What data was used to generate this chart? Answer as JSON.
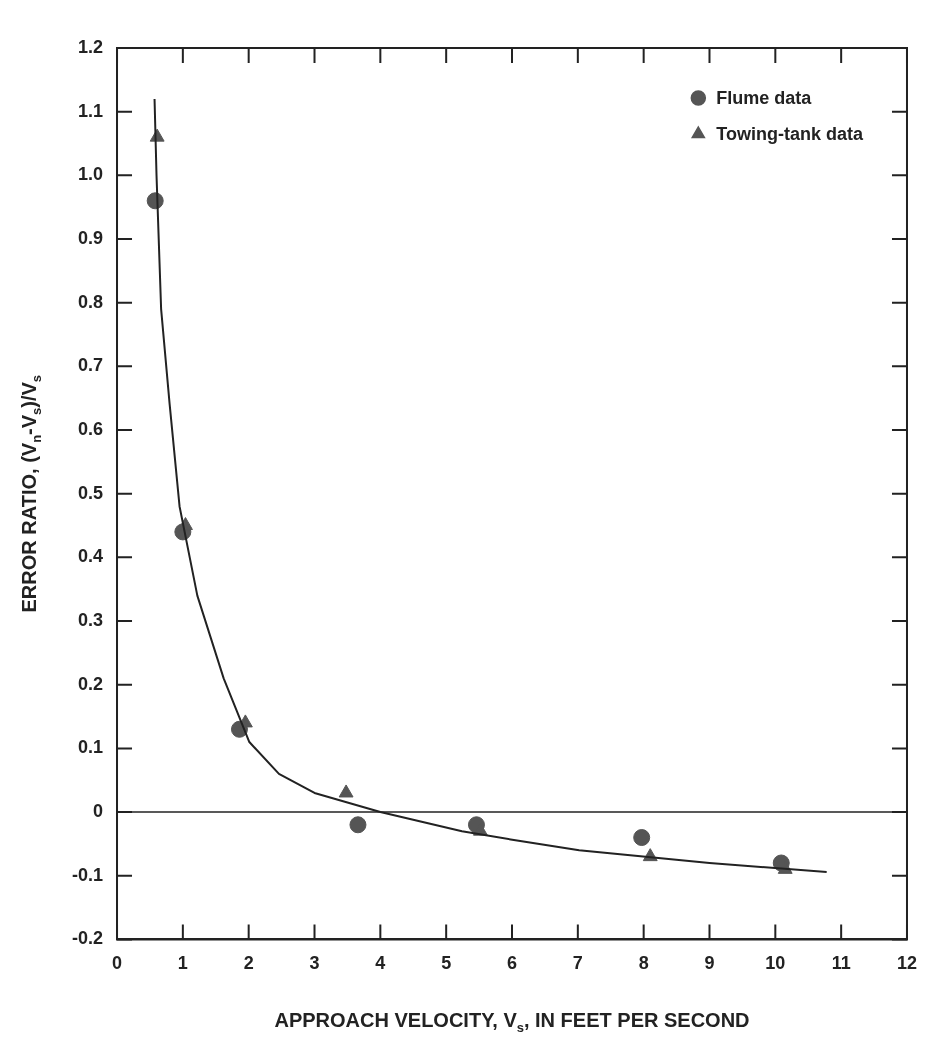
{
  "chart_data": {
    "type": "scatter",
    "xlabel": "APPROACH VELOCITY, V$_{s}$, IN FEET PER SECOND",
    "ylabel": "ERROR RATIO, (V$_{n}$-V$_{s}$)/V$_{s}$",
    "xlim": [
      0,
      12
    ],
    "xticks": [
      0,
      1,
      2,
      3,
      4,
      5,
      6,
      7,
      8,
      9,
      10,
      11,
      12
    ],
    "ylim": [
      -0.2,
      1.2
    ],
    "yticks": [
      {
        "value": -0.2,
        "label": "-0.2"
      },
      {
        "value": -0.1,
        "label": "-0.1"
      },
      0,
      {
        "value": 0.1,
        "label": "0.1"
      },
      {
        "value": 0.2,
        "label": "0.2"
      },
      {
        "value": 0.3,
        "label": "0.3"
      },
      {
        "value": 0.4,
        "label": "0.4"
      },
      {
        "value": 0.5,
        "label": "0.5"
      },
      {
        "value": 0.6,
        "label": "0.6"
      },
      {
        "value": 0.7,
        "label": "0.7"
      },
      {
        "value": 0.8,
        "label": "0.8"
      },
      {
        "value": 0.9,
        "label": "0.9"
      },
      {
        "value": 1,
        "label": "1.0"
      },
      {
        "value": 1.1,
        "label": "1.1"
      },
      {
        "value": 1.2,
        "label": "1.2"
      }
    ],
    "legend": "top right",
    "ref_lines": [
      {
        "axis": "y",
        "value": 0,
        "color": "#222222"
      }
    ],
    "series": [
      {
        "name": "Flume data",
        "marker": "circle",
        "color": "#555555",
        "x": [
          0.58,
          1.0,
          1.86,
          3.66,
          5.46,
          7.97,
          10.09
        ],
        "values": [
          0.96,
          0.44,
          0.13,
          -0.02,
          -0.02,
          -0.04,
          -0.08
        ]
      },
      {
        "name": "Towing-tank data",
        "marker": "triangle",
        "color": "#555555",
        "x": [
          0.61,
          1.04,
          1.95,
          3.48,
          5.52,
          8.1,
          10.15
        ],
        "values": [
          1.06,
          0.45,
          0.14,
          0.03,
          -0.03,
          -0.07,
          -0.09
        ]
      },
      {
        "type": "line",
        "marker": "none",
        "color": "#222222",
        "x": [
          0.57,
          0.6,
          0.67,
          0.8,
          0.95,
          1.22,
          1.62,
          2.01,
          2.46,
          3.0,
          4.0,
          5.24,
          5.98,
          7.02,
          9.0,
          10.78
        ],
        "values": [
          1.12,
          1.0,
          0.79,
          0.64,
          0.48,
          0.34,
          0.21,
          0.11,
          0.06,
          0.03,
          0,
          -0.03,
          -0.043,
          -0.06,
          -0.08,
          -0.094
        ]
      }
    ]
  }
}
